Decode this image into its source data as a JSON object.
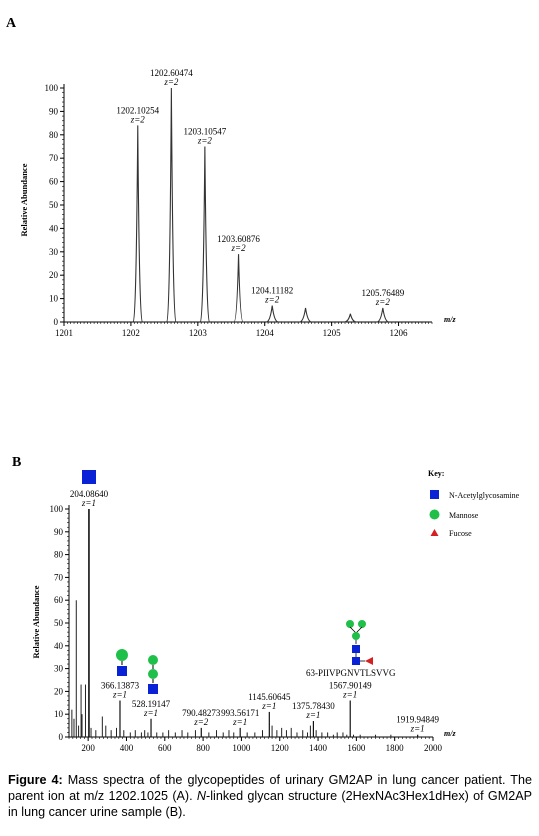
{
  "figure_label": "Figure 4:",
  "caption": {
    "part1": " Mass spectra of the glycopeptides of urinary GM2AP in lung cancer patient. The parent ion at m/z 1202.1025 (A). ",
    "n_letter": "N",
    "part2": "-linked glycan structure (2HexNAc3Hex1dHex) of GM2AP in lung cancer urine sample (B)."
  },
  "key": {
    "title": "Key:",
    "items": [
      {
        "label": "N-Acetylglycosamine",
        "symbol": "square",
        "color": "#0a22d6"
      },
      {
        "label": "Mannose",
        "symbol": "circle",
        "color": "#1fc04a"
      },
      {
        "label": "Fucose",
        "symbol": "triangle",
        "color": "#d42020"
      }
    ]
  },
  "chart_data": [
    {
      "panel": "A",
      "type": "line",
      "ylabel": "Relative Abundance",
      "xlabel": "m/z",
      "xlim": [
        1201,
        1206.5
      ],
      "ylim": [
        0,
        100
      ],
      "xticks": [
        1201,
        1202,
        1203,
        1204,
        1205,
        1206
      ],
      "yticks": [
        0,
        10,
        20,
        30,
        40,
        50,
        60,
        70,
        80,
        90,
        100
      ],
      "peaks": [
        {
          "mz": 1202.10254,
          "intensity": 84,
          "label": "1202.10254",
          "charge": "z=2"
        },
        {
          "mz": 1202.60474,
          "intensity": 100,
          "label": "1202.60474",
          "charge": "z=2"
        },
        {
          "mz": 1203.10547,
          "intensity": 75,
          "label": "1203.10547",
          "charge": "z=2"
        },
        {
          "mz": 1203.60876,
          "intensity": 29,
          "label": "1203.60876",
          "charge": "z=2"
        },
        {
          "mz": 1204.11182,
          "intensity": 7,
          "label": "1204.11182",
          "charge": "z=2"
        },
        {
          "mz": 1204.61,
          "intensity": 6,
          "label": "",
          "charge": ""
        },
        {
          "mz": 1205.28,
          "intensity": 3.5,
          "label": "",
          "charge": ""
        },
        {
          "mz": 1205.76489,
          "intensity": 6,
          "label": "1205.76489",
          "charge": "z=2"
        }
      ]
    },
    {
      "panel": "B",
      "type": "bar",
      "ylabel": "Relative Abundance",
      "xlabel": "m/z",
      "xlim": [
        100,
        2000
      ],
      "ylim": [
        0,
        100
      ],
      "xticks": [
        200,
        400,
        600,
        800,
        1000,
        1200,
        1400,
        1600,
        1800,
        2000
      ],
      "yticks": [
        0,
        10,
        20,
        30,
        40,
        50,
        60,
        70,
        80,
        90,
        100
      ],
      "labeled_peaks": [
        {
          "mz": 204.0864,
          "intensity": 100,
          "label": "204.08640",
          "charge": "z=1"
        },
        {
          "mz": 366.13873,
          "intensity": 16,
          "label": "366.13873",
          "charge": "z=1"
        },
        {
          "mz": 528.19147,
          "intensity": 8,
          "label": "528.19147",
          "charge": "z=1"
        },
        {
          "mz": 790.48273,
          "intensity": 4,
          "label": "790.48273",
          "charge": "z=2"
        },
        {
          "mz": 993.56171,
          "intensity": 4,
          "label": "993.56171",
          "charge": "z=1"
        },
        {
          "mz": 1145.60645,
          "intensity": 11,
          "label": "1145.60645",
          "charge": "z=1"
        },
        {
          "mz": 1375.7843,
          "intensity": 7,
          "label": "1375.78430",
          "charge": "z=1"
        },
        {
          "mz": 1567.90149,
          "intensity": 16,
          "label": "1567.90149",
          "charge": "z=1"
        },
        {
          "mz": 1919.94849,
          "intensity": 1,
          "label": "1919.94849",
          "charge": "z=1"
        }
      ],
      "minor_peaks": [
        {
          "mz": 115,
          "intensity": 12
        },
        {
          "mz": 126,
          "intensity": 8
        },
        {
          "mz": 138,
          "intensity": 60
        },
        {
          "mz": 150,
          "intensity": 5
        },
        {
          "mz": 163,
          "intensity": 23
        },
        {
          "mz": 168,
          "intensity": 10
        },
        {
          "mz": 186,
          "intensity": 23
        },
        {
          "mz": 215,
          "intensity": 4
        },
        {
          "mz": 240,
          "intensity": 3
        },
        {
          "mz": 274,
          "intensity": 9
        },
        {
          "mz": 292,
          "intensity": 5
        },
        {
          "mz": 320,
          "intensity": 3
        },
        {
          "mz": 348,
          "intensity": 4
        },
        {
          "mz": 386,
          "intensity": 3
        },
        {
          "mz": 420,
          "intensity": 2
        },
        {
          "mz": 446,
          "intensity": 3
        },
        {
          "mz": 478,
          "intensity": 2
        },
        {
          "mz": 495,
          "intensity": 3
        },
        {
          "mz": 512,
          "intensity": 2
        },
        {
          "mz": 558,
          "intensity": 2
        },
        {
          "mz": 590,
          "intensity": 2
        },
        {
          "mz": 620,
          "intensity": 3
        },
        {
          "mz": 655,
          "intensity": 2
        },
        {
          "mz": 690,
          "intensity": 3
        },
        {
          "mz": 720,
          "intensity": 2
        },
        {
          "mz": 760,
          "intensity": 3
        },
        {
          "mz": 830,
          "intensity": 2
        },
        {
          "mz": 870,
          "intensity": 3
        },
        {
          "mz": 905,
          "intensity": 2
        },
        {
          "mz": 935,
          "intensity": 3
        },
        {
          "mz": 960,
          "intensity": 2
        },
        {
          "mz": 1030,
          "intensity": 2
        },
        {
          "mz": 1070,
          "intensity": 2
        },
        {
          "mz": 1110,
          "intensity": 3
        },
        {
          "mz": 1160,
          "intensity": 5
        },
        {
          "mz": 1185,
          "intensity": 3
        },
        {
          "mz": 1210,
          "intensity": 4
        },
        {
          "mz": 1235,
          "intensity": 3
        },
        {
          "mz": 1260,
          "intensity": 4
        },
        {
          "mz": 1290,
          "intensity": 2
        },
        {
          "mz": 1320,
          "intensity": 3
        },
        {
          "mz": 1345,
          "intensity": 2
        },
        {
          "mz": 1360,
          "intensity": 5
        },
        {
          "mz": 1390,
          "intensity": 3
        },
        {
          "mz": 1420,
          "intensity": 2
        },
        {
          "mz": 1450,
          "intensity": 2
        },
        {
          "mz": 1480,
          "intensity": 1
        },
        {
          "mz": 1500,
          "intensity": 2
        },
        {
          "mz": 1530,
          "intensity": 2
        },
        {
          "mz": 1550,
          "intensity": 1
        },
        {
          "mz": 1585,
          "intensity": 1
        },
        {
          "mz": 1620,
          "intensity": 1
        },
        {
          "mz": 1700,
          "intensity": 1
        },
        {
          "mz": 1780,
          "intensity": 1
        }
      ],
      "annotations": [
        {
          "text": "63-PIIVPGNVTLSVVG",
          "mz": 1567.90149
        }
      ]
    }
  ]
}
